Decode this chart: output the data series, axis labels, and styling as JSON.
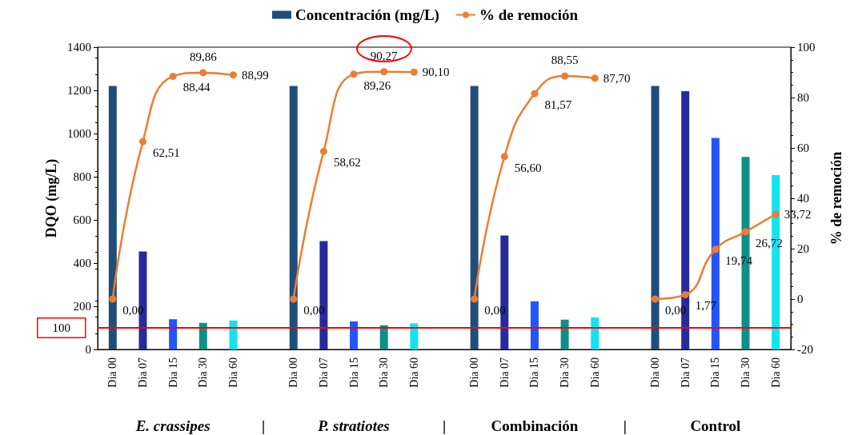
{
  "chart_data": {
    "type": "bar",
    "categories": [
      "Dia 00",
      "Dia 07",
      "Dia 15",
      "Dia 30",
      "Dia 60",
      null,
      "Dia 00",
      "Dia 07",
      "Dia 15",
      "Dia 30",
      "Dia 60",
      null,
      "Dia 00",
      "Dia 07",
      "Dia 15",
      "Dia 30",
      "Dia 60",
      null,
      "Dia 00",
      "Dia 07",
      "Dia 15",
      "Dia 30",
      "Dia 60"
    ],
    "series": [
      {
        "name": "Concentración (mg/L)",
        "values": [
          1220,
          454,
          140,
          123,
          134,
          null,
          1220,
          502,
          130,
          112,
          121,
          null,
          1220,
          528,
          223,
          138,
          148,
          null,
          1220,
          1196,
          980,
          892,
          807
        ],
        "colors": [
          "#1f4e79",
          "#262b9b",
          "#2255ff",
          "#0e8f88",
          "#13e3ef",
          null,
          "#1f4e79",
          "#262b9b",
          "#2255ff",
          "#0e8f88",
          "#13e3ef",
          null,
          "#1f4e79",
          "#262b9b",
          "#2255ff",
          "#0e8f88",
          "#13e3ef",
          null,
          "#1f4e79",
          "#262b9b",
          "#2255ff",
          "#0e8f88",
          "#13e3ef"
        ]
      },
      {
        "name": "% de remoción",
        "type": "line",
        "axis": "y2",
        "color": "#ed7d31",
        "values": [
          0,
          62.51,
          88.44,
          89.86,
          88.99,
          null,
          0,
          58.62,
          89.26,
          90.27,
          90.1,
          null,
          0,
          56.6,
          81.57,
          88.55,
          87.7,
          null,
          0,
          1.77,
          19.74,
          26.72,
          33.72
        ],
        "value_labels": [
          "0,00",
          "62,51",
          "88,44",
          "89,86",
          "88,99",
          null,
          "0,00",
          "58,62",
          "89,26",
          "90,27",
          "90,10",
          null,
          "0,00",
          "56,60",
          "81,57",
          "88,55",
          "87,70",
          null,
          "0,00",
          "1,77",
          "19,74",
          "26,72",
          "33,72"
        ]
      }
    ],
    "ylabel": "DQO (mg/L)",
    "y2label": "% de remoción",
    "ylim": [
      0,
      1400
    ],
    "yticks": [
      0,
      200,
      400,
      600,
      800,
      1000,
      1200,
      1400
    ],
    "y2lim": [
      -20,
      100
    ],
    "y2ticks": [
      -20,
      0,
      20,
      40,
      60,
      80,
      100
    ],
    "ref_lines": [
      {
        "axis": "y",
        "value": 100,
        "label": "100",
        "color": "#ff0000"
      }
    ],
    "annotations": [
      "E. crassipes",
      "|",
      "P. stratiotes",
      "|",
      "Combinación",
      "|",
      "Control"
    ],
    "legend": "top",
    "marker": "circle",
    "grid": false
  }
}
